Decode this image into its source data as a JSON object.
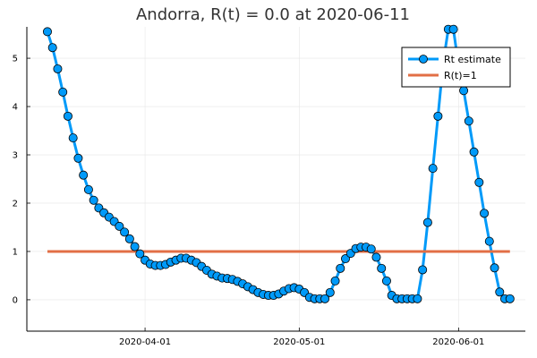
{
  "chart_data": {
    "type": "line",
    "title": "Andorra, R(t) = 0.0 at 2020-06-11",
    "xlabel": "",
    "ylabel": "",
    "x_start_date": "2020-03-13",
    "x_end_date": "2020-06-11",
    "xlim": [
      "2020-03-09",
      "2020-06-14"
    ],
    "ylim": [
      -0.65,
      5.65
    ],
    "x_ticks": [
      {
        "date": "2020-04-01",
        "label": "2020-04-01"
      },
      {
        "date": "2020-05-01",
        "label": "2020-05-01"
      },
      {
        "date": "2020-06-01",
        "label": "2020-06-01"
      }
    ],
    "y_ticks": [
      {
        "value": 0,
        "label": "0"
      },
      {
        "value": 1,
        "label": "1"
      },
      {
        "value": 2,
        "label": "2"
      },
      {
        "value": 3,
        "label": "3"
      },
      {
        "value": 4,
        "label": "4"
      },
      {
        "value": 5,
        "label": "5"
      }
    ],
    "grid": true,
    "legend_position": "top-right",
    "series": [
      {
        "name": "Rt estimate",
        "color": "#009af9",
        "marker": "circle",
        "dates": [
          "2020-03-13",
          "2020-03-14",
          "2020-03-15",
          "2020-03-16",
          "2020-03-17",
          "2020-03-18",
          "2020-03-19",
          "2020-03-20",
          "2020-03-21",
          "2020-03-22",
          "2020-03-23",
          "2020-03-24",
          "2020-03-25",
          "2020-03-26",
          "2020-03-27",
          "2020-03-28",
          "2020-03-29",
          "2020-03-30",
          "2020-03-31",
          "2020-04-01",
          "2020-04-02",
          "2020-04-03",
          "2020-04-04",
          "2020-04-05",
          "2020-04-06",
          "2020-04-07",
          "2020-04-08",
          "2020-04-09",
          "2020-04-10",
          "2020-04-11",
          "2020-04-12",
          "2020-04-13",
          "2020-04-14",
          "2020-04-15",
          "2020-04-16",
          "2020-04-17",
          "2020-04-18",
          "2020-04-19",
          "2020-04-20",
          "2020-04-21",
          "2020-04-22",
          "2020-04-23",
          "2020-04-24",
          "2020-04-25",
          "2020-04-26",
          "2020-04-27",
          "2020-04-28",
          "2020-04-29",
          "2020-04-30",
          "2020-05-01",
          "2020-05-02",
          "2020-05-03",
          "2020-05-04",
          "2020-05-05",
          "2020-05-06",
          "2020-05-07",
          "2020-05-08",
          "2020-05-09",
          "2020-05-10",
          "2020-05-11",
          "2020-05-12",
          "2020-05-13",
          "2020-05-14",
          "2020-05-15",
          "2020-05-16",
          "2020-05-17",
          "2020-05-18",
          "2020-05-19",
          "2020-05-20",
          "2020-05-21",
          "2020-05-22",
          "2020-05-23",
          "2020-05-24",
          "2020-05-25",
          "2020-05-26",
          "2020-05-27",
          "2020-05-28",
          "2020-05-29",
          "2020-05-30",
          "2020-05-31",
          "2020-06-01",
          "2020-06-02",
          "2020-06-03",
          "2020-06-04",
          "2020-06-05",
          "2020-06-06",
          "2020-06-07",
          "2020-06-08",
          "2020-06-09",
          "2020-06-10",
          "2020-06-11"
        ],
        "values": [
          5.55,
          5.22,
          4.78,
          4.3,
          3.8,
          3.35,
          2.93,
          2.58,
          2.28,
          2.06,
          1.9,
          1.8,
          1.71,
          1.62,
          1.52,
          1.4,
          1.26,
          1.1,
          0.95,
          0.82,
          0.74,
          0.71,
          0.71,
          0.73,
          0.78,
          0.82,
          0.86,
          0.86,
          0.82,
          0.77,
          0.69,
          0.61,
          0.53,
          0.49,
          0.45,
          0.44,
          0.42,
          0.38,
          0.33,
          0.27,
          0.21,
          0.15,
          0.11,
          0.09,
          0.09,
          0.12,
          0.18,
          0.23,
          0.25,
          0.22,
          0.15,
          0.05,
          0.02,
          0.02,
          0.02,
          0.15,
          0.39,
          0.65,
          0.85,
          0.96,
          1.06,
          1.09,
          1.09,
          1.05,
          0.88,
          0.65,
          0.39,
          0.09,
          0.02,
          0.02,
          0.02,
          0.02,
          0.02,
          0.62,
          1.6,
          2.72,
          3.8,
          4.9,
          5.6,
          5.6,
          4.85,
          4.33,
          3.7,
          3.06,
          2.43,
          1.79,
          1.21,
          0.66,
          0.16,
          0.02,
          0.02
        ]
      },
      {
        "name": "R(t)=1",
        "color": "#e26f46",
        "marker": "none",
        "dates": [
          "2020-03-13",
          "2020-06-11"
        ],
        "values": [
          1,
          1
        ]
      }
    ]
  }
}
